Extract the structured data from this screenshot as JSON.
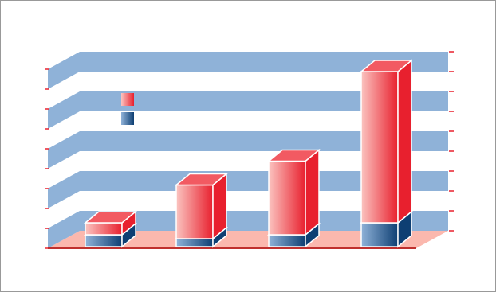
{
  "chart_data": {
    "type": "bar3d_stacked",
    "categories": [
      null,
      null,
      null,
      null
    ],
    "series": [
      {
        "color": "#0e3f73",
        "values": [
          6,
          4,
          6,
          12
        ]
      },
      {
        "color": "#e8202e",
        "values": [
          6,
          27,
          37,
          76
        ]
      }
    ],
    "ylim": [
      0,
      90
    ],
    "yticks": [
      0,
      10,
      20,
      30,
      40,
      50,
      60,
      70,
      80,
      90
    ],
    "grid": true
  }
}
